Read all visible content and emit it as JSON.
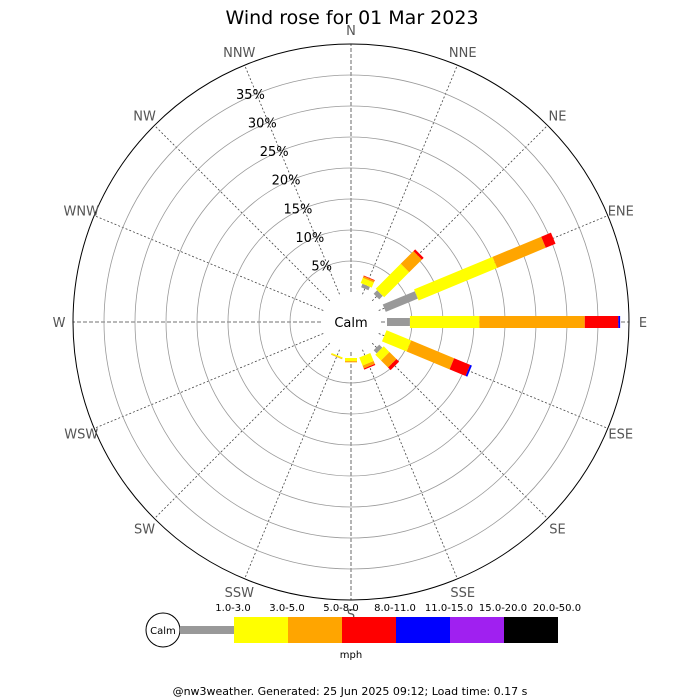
{
  "title": "Wind rose for 01 Mar 2023",
  "footer": "@nw3weather. Generated: 25 Jun 2025 09:12; Load time: 0.17 s",
  "chart_data": {
    "type": "wind-rose",
    "title": "Wind rose for 01 Mar 2023",
    "directions": [
      "N",
      "NNE",
      "NE",
      "ENE",
      "E",
      "ESE",
      "SE",
      "SSE",
      "S",
      "SSW",
      "SW",
      "WSW",
      "W",
      "WNW",
      "NW",
      "NNW"
    ],
    "ring_labels": [
      "5%",
      "10%",
      "15%",
      "20%",
      "25%",
      "30%",
      "35%"
    ],
    "ring_values": [
      5,
      10,
      15,
      20,
      25,
      30,
      35
    ],
    "rlim": [
      0,
      40
    ],
    "calm_label": "Calm",
    "unit": "mph",
    "speed_bins": [
      {
        "label": "1.0-3.0",
        "color": "#999999"
      },
      {
        "label": "3.0-5.0",
        "color": "#ffff00"
      },
      {
        "label": "5.0-8.0",
        "color": "#ffa500"
      },
      {
        "label": "8.0-11.0",
        "color": "#ff0000"
      },
      {
        "label": "11.0-15.0",
        "color": "#0000ff"
      },
      {
        "label": "15.0-20.0",
        "color": "#a020f0"
      },
      {
        "label": "20.0-50.0",
        "color": "#000000"
      }
    ],
    "series": [
      {
        "direction": "N",
        "values": [
          0,
          0,
          0,
          0,
          0,
          0,
          0
        ]
      },
      {
        "direction": "NNE",
        "values": [
          0.6,
          0.9,
          0.3,
          0.1,
          0,
          0,
          0
        ]
      },
      {
        "direction": "NE",
        "values": [
          0.8,
          5.7,
          2.9,
          0.4,
          0,
          0,
          0
        ]
      },
      {
        "direction": "ENE",
        "values": [
          5.6,
          13.7,
          8.5,
          1.7,
          0,
          0,
          0
        ]
      },
      {
        "direction": "E",
        "values": [
          3.7,
          11.2,
          17.0,
          5.4,
          0.3,
          0,
          0
        ]
      },
      {
        "direction": "ESE",
        "values": [
          0,
          4.3,
          7.5,
          2.8,
          0.3,
          0,
          0
        ]
      },
      {
        "direction": "SE",
        "values": [
          0.7,
          1.3,
          1.6,
          0.6,
          0,
          0,
          0
        ]
      },
      {
        "direction": "SSE",
        "values": [
          0,
          1.4,
          0.5,
          0.2,
          0,
          0,
          0
        ]
      },
      {
        "direction": "S",
        "values": [
          0,
          0.5,
          0.2,
          0,
          0,
          0,
          0
        ]
      },
      {
        "direction": "SSW",
        "values": [
          0,
          0.2,
          0.1,
          0,
          0,
          0,
          0
        ]
      },
      {
        "direction": "SW",
        "values": [
          0,
          0,
          0,
          0,
          0,
          0,
          0
        ]
      },
      {
        "direction": "WSW",
        "values": [
          0,
          0,
          0,
          0,
          0,
          0,
          0
        ]
      },
      {
        "direction": "W",
        "values": [
          0,
          0,
          0,
          0,
          0,
          0,
          0
        ]
      },
      {
        "direction": "WNW",
        "values": [
          0,
          0,
          0,
          0,
          0,
          0,
          0
        ]
      },
      {
        "direction": "NW",
        "values": [
          0,
          0,
          0,
          0,
          0,
          0,
          0
        ]
      },
      {
        "direction": "NNW",
        "values": [
          0,
          0,
          0,
          0,
          0,
          0,
          0
        ]
      }
    ]
  }
}
